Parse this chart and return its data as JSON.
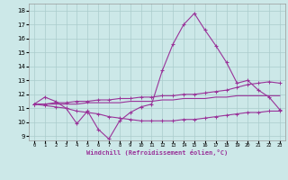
{
  "title": "",
  "xlabel": "Windchill (Refroidissement éolien,°C)",
  "background_color": "#cce8e8",
  "grid_color": "#aacccc",
  "line_color": "#993399",
  "x_ticks": [
    0,
    1,
    2,
    3,
    4,
    5,
    6,
    7,
    8,
    9,
    10,
    11,
    12,
    13,
    14,
    15,
    16,
    17,
    18,
    19,
    20,
    21,
    22,
    23
  ],
  "y_ticks": [
    9,
    10,
    11,
    12,
    13,
    14,
    15,
    16,
    17,
    18
  ],
  "xlim": [
    -0.5,
    23.5
  ],
  "ylim": [
    8.7,
    18.5
  ],
  "series1_x": [
    0,
    1,
    2,
    3,
    4,
    5,
    6,
    7,
    8,
    9,
    10,
    11,
    12,
    13,
    14,
    15,
    16,
    17,
    18,
    19,
    20,
    21,
    22,
    23
  ],
  "series1_y": [
    11.3,
    11.8,
    11.5,
    11.0,
    9.9,
    10.8,
    9.5,
    8.8,
    10.1,
    10.7,
    11.1,
    11.3,
    13.7,
    15.6,
    17.0,
    17.8,
    16.6,
    15.5,
    14.3,
    12.8,
    13.0,
    12.3,
    11.8,
    10.9
  ],
  "series2_x": [
    0,
    1,
    2,
    3,
    4,
    5,
    6,
    7,
    8,
    9,
    10,
    11,
    12,
    13,
    14,
    15,
    16,
    17,
    18,
    19,
    20,
    21,
    22,
    23
  ],
  "series2_y": [
    11.3,
    11.3,
    11.4,
    11.4,
    11.5,
    11.5,
    11.6,
    11.6,
    11.7,
    11.7,
    11.8,
    11.8,
    11.9,
    11.9,
    12.0,
    12.0,
    12.1,
    12.2,
    12.3,
    12.5,
    12.7,
    12.8,
    12.9,
    12.8
  ],
  "series3_x": [
    0,
    1,
    2,
    3,
    4,
    5,
    6,
    7,
    8,
    9,
    10,
    11,
    12,
    13,
    14,
    15,
    16,
    17,
    18,
    19,
    20,
    21,
    22,
    23
  ],
  "series3_y": [
    11.3,
    11.3,
    11.3,
    11.3,
    11.3,
    11.4,
    11.4,
    11.4,
    11.4,
    11.5,
    11.5,
    11.5,
    11.6,
    11.6,
    11.7,
    11.7,
    11.7,
    11.8,
    11.8,
    11.9,
    11.9,
    11.9,
    11.9,
    11.9
  ],
  "series4_x": [
    0,
    1,
    2,
    3,
    4,
    5,
    6,
    7,
    8,
    9,
    10,
    11,
    12,
    13,
    14,
    15,
    16,
    17,
    18,
    19,
    20,
    21,
    22,
    23
  ],
  "series4_y": [
    11.3,
    11.2,
    11.1,
    11.0,
    10.8,
    10.7,
    10.6,
    10.4,
    10.3,
    10.2,
    10.1,
    10.1,
    10.1,
    10.1,
    10.2,
    10.2,
    10.3,
    10.4,
    10.5,
    10.6,
    10.7,
    10.7,
    10.8,
    10.8
  ]
}
